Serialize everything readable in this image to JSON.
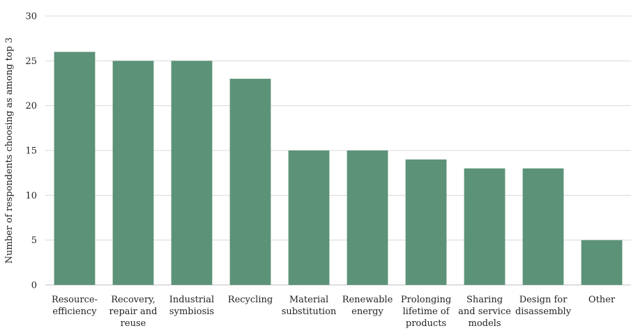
{
  "chart_data": {
    "type": "bar",
    "title": "",
    "xlabel": "",
    "ylabel": "Number of respondents choosing as among top 3",
    "ylim": [
      0,
      30
    ],
    "yticks": [
      0,
      5,
      10,
      15,
      20,
      25,
      30
    ],
    "grid": true,
    "bar_color": "#5c9278",
    "categories": [
      [
        "Resource-",
        "efficiency"
      ],
      [
        "Recovery,",
        "repair and",
        "reuse"
      ],
      [
        "Industrial",
        "symbiosis"
      ],
      [
        "Recycling"
      ],
      [
        "Material",
        "substitution"
      ],
      [
        "Renewable",
        "energy"
      ],
      [
        "Prolonging",
        "lifetime of",
        "products"
      ],
      [
        "Sharing",
        "and service",
        "models"
      ],
      [
        "Design for",
        "disassembly"
      ],
      [
        "Other"
      ]
    ],
    "values": [
      26,
      25,
      25,
      23,
      15,
      15,
      14,
      13,
      13,
      5
    ]
  }
}
